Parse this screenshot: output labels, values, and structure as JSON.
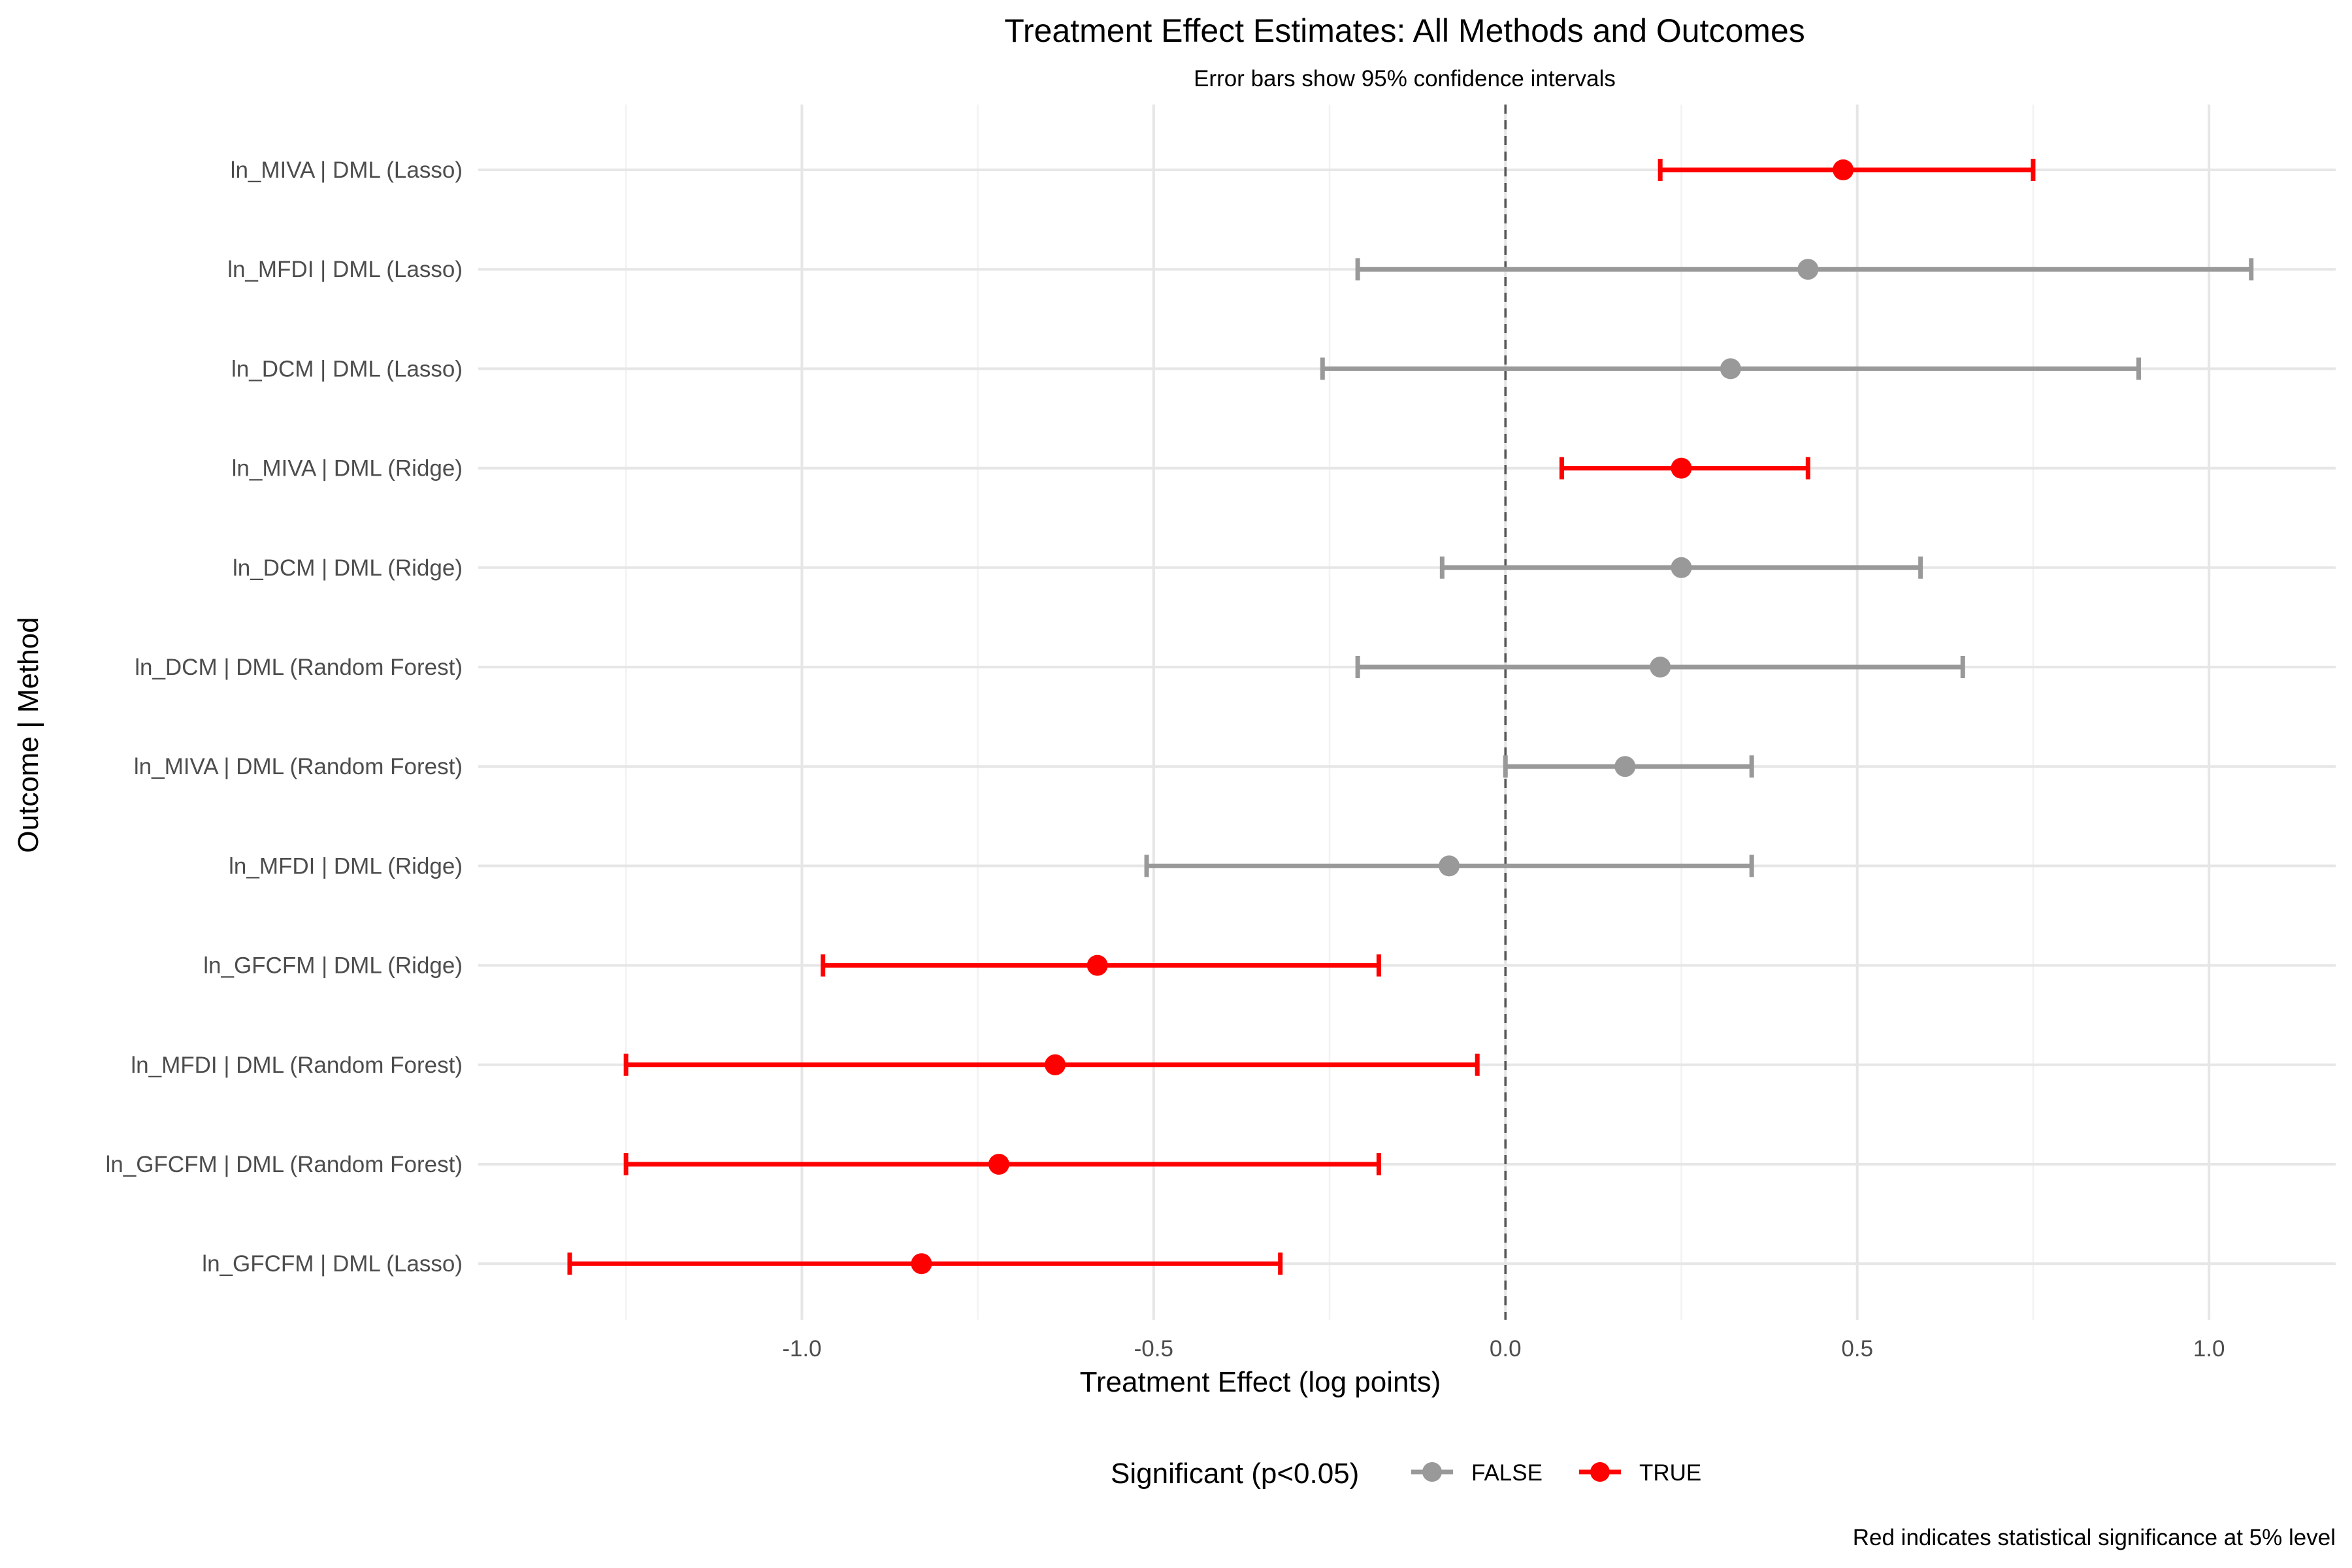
{
  "chart_data": {
    "type": "scatter",
    "subtype": "forest-plot-with-error-bars",
    "title": "Treatment Effect Estimates: All Methods and Outcomes",
    "subtitle": "Error bars show 95% confidence intervals",
    "xlabel": "Treatment Effect (log points)",
    "ylabel": "Outcome | Method",
    "caption": "Red indicates statistical significance at 5% level",
    "xlim": [
      -1.46,
      1.18
    ],
    "x_ticks": [
      -1.0,
      -0.5,
      0.0,
      0.5,
      1.0
    ],
    "x_tick_labels": [
      "-1.0",
      "-0.5",
      "0.0",
      "0.5",
      "1.0"
    ],
    "reference_line": {
      "x": 0,
      "style": "dashed"
    },
    "grid": true,
    "legend": {
      "title": "Significant (p<0.05)",
      "position": "bottom",
      "entries": [
        {
          "label": "FALSE",
          "color": "#999999"
        },
        {
          "label": "TRUE",
          "color": "#ff0000"
        }
      ]
    },
    "colors": {
      "significant": "#ff0000",
      "not_significant": "#999999"
    },
    "rows": [
      {
        "label": "ln_MIVA | DML (Lasso)",
        "estimate": 0.48,
        "ci_low": 0.22,
        "ci_high": 0.75,
        "significant": true
      },
      {
        "label": "ln_MFDI | DML (Lasso)",
        "estimate": 0.43,
        "ci_low": -0.21,
        "ci_high": 1.06,
        "significant": false
      },
      {
        "label": "ln_DCM | DML (Lasso)",
        "estimate": 0.32,
        "ci_low": -0.26,
        "ci_high": 0.9,
        "significant": false
      },
      {
        "label": "ln_MIVA | DML (Ridge)",
        "estimate": 0.25,
        "ci_low": 0.08,
        "ci_high": 0.43,
        "significant": true
      },
      {
        "label": "ln_DCM | DML (Ridge)",
        "estimate": 0.25,
        "ci_low": -0.09,
        "ci_high": 0.59,
        "significant": false
      },
      {
        "label": "ln_DCM | DML (Random Forest)",
        "estimate": 0.22,
        "ci_low": -0.21,
        "ci_high": 0.65,
        "significant": false
      },
      {
        "label": "ln_MIVA | DML (Random Forest)",
        "estimate": 0.17,
        "ci_low": 0.0,
        "ci_high": 0.35,
        "significant": false
      },
      {
        "label": "ln_MFDI | DML (Ridge)",
        "estimate": -0.08,
        "ci_low": -0.51,
        "ci_high": 0.35,
        "significant": false
      },
      {
        "label": "ln_GFCFM | DML (Ridge)",
        "estimate": -0.58,
        "ci_low": -0.97,
        "ci_high": -0.18,
        "significant": true
      },
      {
        "label": "ln_MFDI | DML (Random Forest)",
        "estimate": -0.64,
        "ci_low": -1.25,
        "ci_high": -0.04,
        "significant": true
      },
      {
        "label": "ln_GFCFM | DML (Random Forest)",
        "estimate": -0.72,
        "ci_low": -1.25,
        "ci_high": -0.18,
        "significant": true
      },
      {
        "label": "ln_GFCFM | DML (Lasso)",
        "estimate": -0.83,
        "ci_low": -1.33,
        "ci_high": -0.32,
        "significant": true
      }
    ]
  }
}
